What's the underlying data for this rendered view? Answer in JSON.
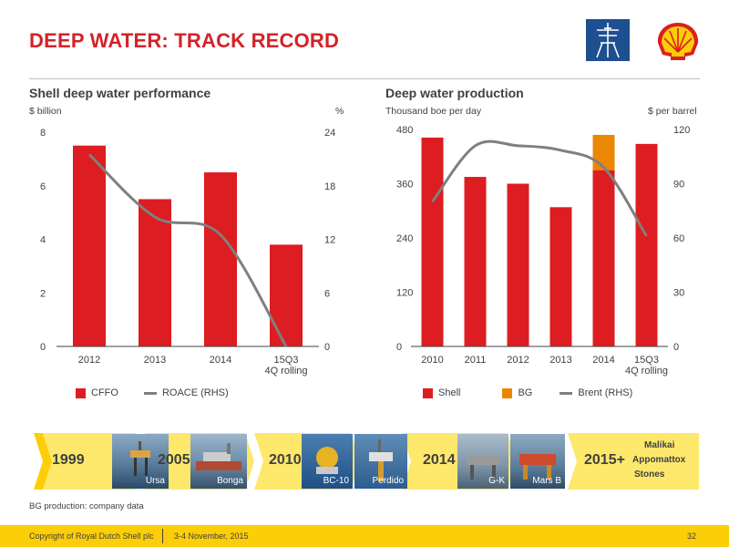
{
  "title": "DEEP WATER: TRACK RECORD",
  "charts": {
    "left": {
      "heading": "Shell deep water performance",
      "unit_left": "$ billion",
      "unit_right": "%"
    },
    "right": {
      "heading": "Deep water production",
      "unit_left": "Thousand boe per day",
      "unit_right": "$ per barrel"
    }
  },
  "legend": {
    "left": [
      "CFFO",
      "ROACE (RHS)"
    ],
    "right": [
      "Shell",
      "BG",
      "Brent (RHS)"
    ]
  },
  "chart_data": [
    {
      "type": "bar",
      "title": "Shell deep water performance",
      "categories": [
        "2012",
        "2013",
        "2014",
        "15Q3\n4Q rolling"
      ],
      "y_ticks": [
        "0",
        "2",
        "4",
        "6",
        "8"
      ],
      "y2_ticks": [
        "0",
        "6",
        "12",
        "18",
        "24"
      ],
      "ylim": [
        0,
        8
      ],
      "y2lim": [
        0,
        24
      ],
      "series": [
        {
          "name": "CFFO",
          "type": "bar",
          "values": [
            7.5,
            5.5,
            6.5,
            3.8
          ],
          "color": "#dd1d21"
        },
        {
          "name": "ROACE (RHS)",
          "type": "line",
          "axis": "right",
          "values": [
            21.5,
            14.5,
            12.5,
            0
          ],
          "color": "#7f7f7f"
        }
      ]
    },
    {
      "type": "bar",
      "title": "Deep water production",
      "categories": [
        "2010",
        "2011",
        "2012",
        "2013",
        "2014",
        "15Q3\n4Q rolling"
      ],
      "y_ticks": [
        "0",
        "120",
        "240",
        "360",
        "480"
      ],
      "y2_ticks": [
        "0",
        "30",
        "60",
        "90",
        "120"
      ],
      "ylim": [
        0,
        480
      ],
      "y2lim": [
        0,
        120
      ],
      "stacked": true,
      "series": [
        {
          "name": "Shell",
          "type": "bar",
          "values": [
            462,
            375,
            360,
            308,
            390,
            448
          ],
          "color": "#dd1d21"
        },
        {
          "name": "BG",
          "type": "bar",
          "values": [
            0,
            0,
            0,
            0,
            78,
            0
          ],
          "color": "#eb8705"
        },
        {
          "name": "Brent (RHS)",
          "type": "line",
          "axis": "right",
          "values": [
            80,
            111,
            111,
            108.5,
            99,
            61
          ],
          "color": "#7f7f7f"
        }
      ]
    }
  ],
  "timeline": {
    "years": [
      "1999",
      "2005",
      "2010",
      "2014",
      "2015+"
    ],
    "photos": [
      "Ursa",
      "Bonga",
      "BC-10",
      "Perdido",
      "G-K",
      "Mars B"
    ],
    "future_projects": [
      "Malikai",
      "Appomattox",
      "Stones"
    ]
  },
  "footnote": "BG production: company data",
  "footer": {
    "copyright": "Copyright of Royal Dutch Shell plc",
    "date": "3-4  November, 2015",
    "page": "32"
  },
  "colors": {
    "accent": "#dd1d21",
    "bg_orange": "#eb8705",
    "line_grey": "#7f7f7f",
    "brand_yellow": "#fbce07",
    "title_red": "#d2232a"
  }
}
